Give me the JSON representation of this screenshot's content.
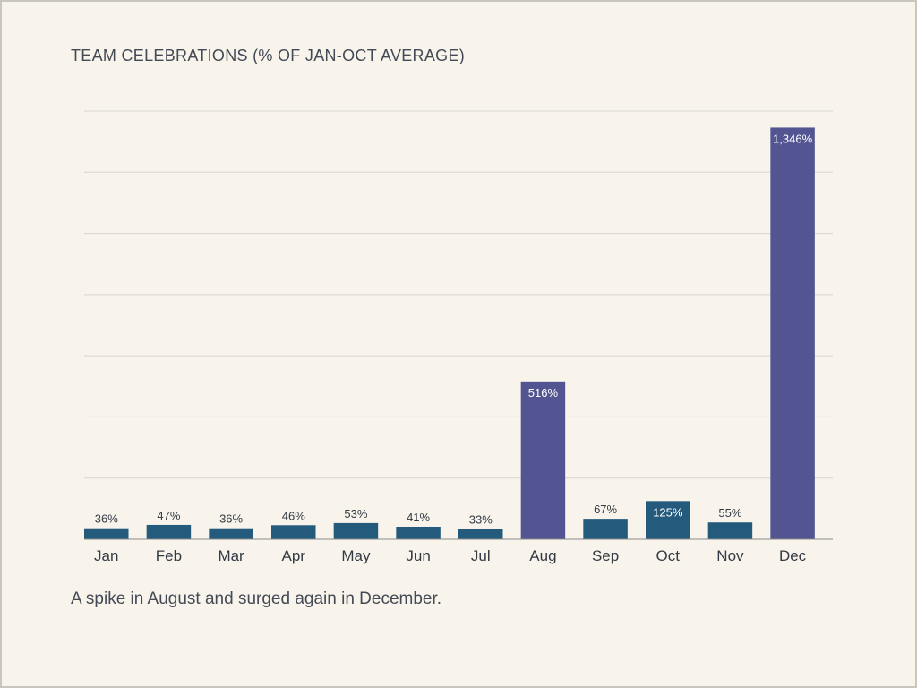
{
  "chart_data": {
    "type": "bar",
    "title": "TEAM CELEBRATIONS (% OF JAN-OCT AVERAGE)",
    "caption": "A spike in August and surged again in December.",
    "categories": [
      "Jan",
      "Feb",
      "Mar",
      "Apr",
      "May",
      "Jun",
      "Jul",
      "Aug",
      "Sep",
      "Oct",
      "Nov",
      "Dec"
    ],
    "values": [
      36,
      47,
      36,
      46,
      53,
      41,
      33,
      516,
      67,
      125,
      55,
      1346
    ],
    "labels": [
      "36%",
      "47%",
      "36%",
      "46%",
      "53%",
      "41%",
      "33%",
      "516%",
      "67%",
      "125%",
      "55%",
      "1,346%"
    ],
    "highlight": [
      false,
      false,
      false,
      false,
      false,
      false,
      false,
      true,
      false,
      false,
      false,
      true
    ],
    "ylim": [
      0,
      1400
    ],
    "gridlines": [
      200,
      400,
      600,
      800,
      1000,
      1200,
      1400
    ],
    "grid": true,
    "colors": {
      "normal": "#245a7c",
      "highlight": "#525591",
      "grid": "#d8d5cf",
      "axis": "#8a8a8a"
    }
  }
}
